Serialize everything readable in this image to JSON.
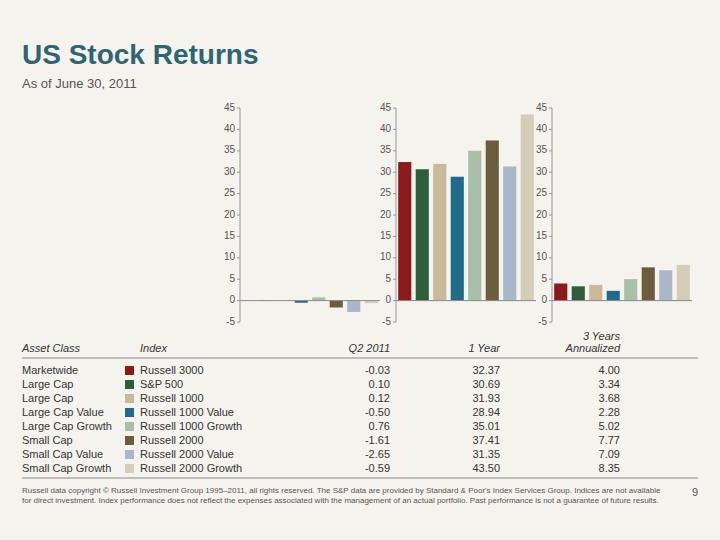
{
  "chart_data": {
    "type": "bar",
    "title": "US Stock Returns",
    "subtitle": "As of June 30, 2011",
    "categories": [
      "Marketwide",
      "Large Cap",
      "Large Cap",
      "Large Cap Value",
      "Large Cap Growth",
      "Small Cap",
      "Small Cap Value",
      "Small Cap Growth"
    ],
    "indices": [
      "Russell 3000",
      "S&P 500",
      "Russell 1000",
      "Russell 1000 Value",
      "Russell 1000 Growth",
      "Russell 2000",
      "Russell 2000 Value",
      "Russell 2000 Growth"
    ],
    "colors": [
      "#8b1a1a",
      "#2e5d3b",
      "#c8b99a",
      "#1f6b8c",
      "#a8bfa8",
      "#6b5c3e",
      "#a8b8c8",
      "#d4cdb8"
    ],
    "col_headers": [
      "Asset Class",
      "Index"
    ],
    "series": [
      {
        "name": "Q2 2011",
        "values": [
          -0.03,
          0.1,
          0.12,
          -0.5,
          0.76,
          -1.61,
          -2.65,
          -0.59
        ],
        "value_labels": [
          "-0.03",
          "0.10",
          "0.12",
          "-0.50",
          "0.76",
          "-1.61",
          "-2.65",
          "-0.59"
        ]
      },
      {
        "name": "1 Year",
        "values": [
          32.37,
          30.69,
          31.93,
          28.94,
          35.01,
          37.41,
          31.35,
          43.5
        ],
        "value_labels": [
          "32.37",
          "30.69",
          "31.93",
          "28.94",
          "35.01",
          "37.41",
          "31.35",
          "43.50"
        ]
      },
      {
        "name": "3 Years\nAnnualized",
        "values": [
          4.0,
          3.34,
          3.68,
          2.28,
          5.02,
          7.77,
          7.09,
          8.35
        ],
        "value_labels": [
          "4.00",
          "3.34",
          "3.68",
          "2.28",
          "5.02",
          "7.77",
          "7.09",
          "8.35"
        ]
      }
    ],
    "ylim": [
      -5,
      45
    ],
    "yticks": [
      -5,
      0,
      5,
      10,
      15,
      20,
      25,
      30,
      35,
      40,
      45
    ],
    "grid": false,
    "tick_labels": "y",
    "footer": "Russell data copyright © Russell Investment Group 1995–2011, all rights reserved. The S&P data are provided by Standard & Poor's Index Services Group. Indices are not available for direct investment. Index performance does not reflect the expenses associated with the management of an actual portfolio. Past performance is not a guarantee of future results.",
    "page_number": "9"
  }
}
